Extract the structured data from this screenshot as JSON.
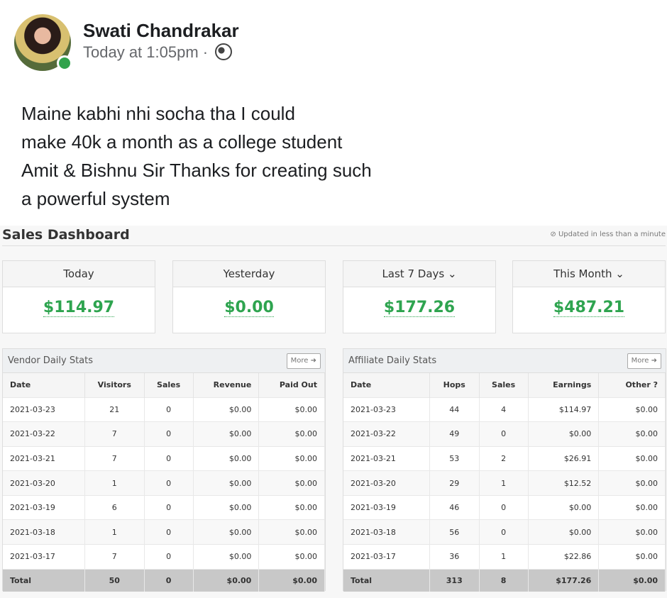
{
  "post": {
    "author": "Swati Chandrakar",
    "time": "Today at 1:05pm",
    "separator": "·",
    "privacy_icon": "globe-icon",
    "lines": [
      "Maine kabhi nhi socha tha I could",
      "make 40k a month as a college student",
      "Amit & Bishnu Sir Thanks for creating such",
      "a powerful system"
    ]
  },
  "dashboard": {
    "title": "Sales Dashboard",
    "updated": "⊘ Updated in less than a minute",
    "cards": [
      {
        "label": "Today",
        "value": "$114.97"
      },
      {
        "label": "Yesterday",
        "value": "$0.00"
      },
      {
        "label": "Last 7 Days ⌄",
        "value": "$177.26"
      },
      {
        "label": "This Month ⌄",
        "value": "$487.21"
      }
    ],
    "vendor": {
      "title": "Vendor Daily Stats",
      "more": "More ➜",
      "headers": [
        "Date",
        "Visitors",
        "Sales",
        "Revenue",
        "Paid Out"
      ],
      "rows": [
        [
          "2021-03-23",
          "21",
          "0",
          "$0.00",
          "$0.00"
        ],
        [
          "2021-03-22",
          "7",
          "0",
          "$0.00",
          "$0.00"
        ],
        [
          "2021-03-21",
          "7",
          "0",
          "$0.00",
          "$0.00"
        ],
        [
          "2021-03-20",
          "1",
          "0",
          "$0.00",
          "$0.00"
        ],
        [
          "2021-03-19",
          "6",
          "0",
          "$0.00",
          "$0.00"
        ],
        [
          "2021-03-18",
          "1",
          "0",
          "$0.00",
          "$0.00"
        ],
        [
          "2021-03-17",
          "7",
          "0",
          "$0.00",
          "$0.00"
        ]
      ],
      "total": [
        "Total",
        "50",
        "0",
        "$0.00",
        "$0.00"
      ]
    },
    "affiliate": {
      "title": "Affiliate Daily Stats",
      "more": "More ➜",
      "headers": [
        "Date",
        "Hops",
        "Sales",
        "Earnings",
        "Other ?"
      ],
      "rows": [
        [
          "2021-03-23",
          "44",
          "4",
          "$114.97",
          "$0.00"
        ],
        [
          "2021-03-22",
          "49",
          "0",
          "$0.00",
          "$0.00"
        ],
        [
          "2021-03-21",
          "53",
          "2",
          "$26.91",
          "$0.00"
        ],
        [
          "2021-03-20",
          "29",
          "1",
          "$12.52",
          "$0.00"
        ],
        [
          "2021-03-19",
          "46",
          "0",
          "$0.00",
          "$0.00"
        ],
        [
          "2021-03-18",
          "56",
          "0",
          "$0.00",
          "$0.00"
        ],
        [
          "2021-03-17",
          "36",
          "1",
          "$22.86",
          "$0.00"
        ]
      ],
      "total": [
        "Total",
        "313",
        "8",
        "$177.26",
        "$0.00"
      ]
    }
  },
  "colors": {
    "accent_green": "#2ea44f",
    "online": "#31a24c"
  }
}
